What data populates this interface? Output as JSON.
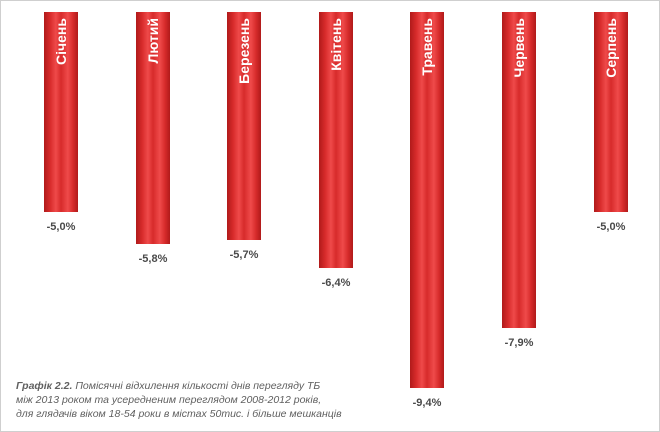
{
  "chart_data": {
    "type": "bar",
    "categories": [
      "Січень",
      "Лютий",
      "Березень",
      "Квітень",
      "Травень",
      "Червень",
      "Серпень"
    ],
    "values": [
      -5.0,
      -5.8,
      -5.7,
      -6.4,
      -9.4,
      -7.9,
      -5.0
    ],
    "value_labels": [
      "-5,0%",
      "-5,8%",
      "-5,7%",
      "-6,4%",
      "-9,4%",
      "-7,9%",
      "-5,0%"
    ],
    "ylim": [
      -10,
      0
    ],
    "grid": false,
    "legend": "none",
    "title": "",
    "xlabel": "",
    "ylabel": "",
    "colors": {
      "bar": "#d72b2b",
      "bar_edge": "#b01a1a",
      "bar_stripe": "#ef4a4a",
      "label_text": "#ffffff",
      "value_text": "#4a4a4a"
    }
  },
  "caption": {
    "lead": "Графік 2.2.",
    "line1_rest": " Помісячні відхилення кількості днів перегляду ТБ",
    "line2": "між 2013 роком та усередненим переглядом 2008-2012 років,",
    "line3": "для глядачів віком 18-54 роки в містах 50тис. і більше мешканців"
  }
}
